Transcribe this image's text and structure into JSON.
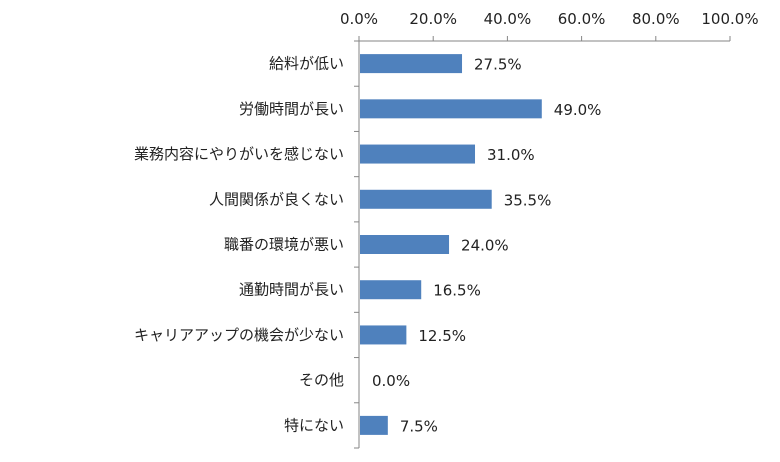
{
  "colors": {
    "bar": "#4F81BD",
    "axis": "#868686",
    "text": "#222222",
    "background": "#ffffff"
  },
  "chart_data": {
    "type": "bar",
    "orientation": "horizontal",
    "title": "",
    "xlabel": "",
    "ylabel": "",
    "xlim": [
      0,
      100
    ],
    "x_ticks": [
      0,
      20,
      40,
      60,
      80,
      100
    ],
    "x_tick_labels": [
      "0.0%",
      "20.0%",
      "40.0%",
      "60.0%",
      "80.0%",
      "100.0%"
    ],
    "x_axis_position": "top",
    "grid": false,
    "legend": "none",
    "categories": [
      "給料が低い",
      "労働時間が長い",
      "業務内容にやりがいを感じない",
      "人間関係が良くない",
      "職番の環境が悪い",
      "通勤時間が長い",
      "キャリアアップの機会が少ない",
      "その他",
      "特にない"
    ],
    "values": [
      27.5,
      49.0,
      31.0,
      35.5,
      24.0,
      16.5,
      12.5,
      0.0,
      7.5
    ],
    "value_labels": [
      "27.5%",
      "49.0%",
      "31.0%",
      "35.5%",
      "24.0%",
      "16.5%",
      "12.5%",
      "0.0%",
      "7.5%"
    ]
  }
}
